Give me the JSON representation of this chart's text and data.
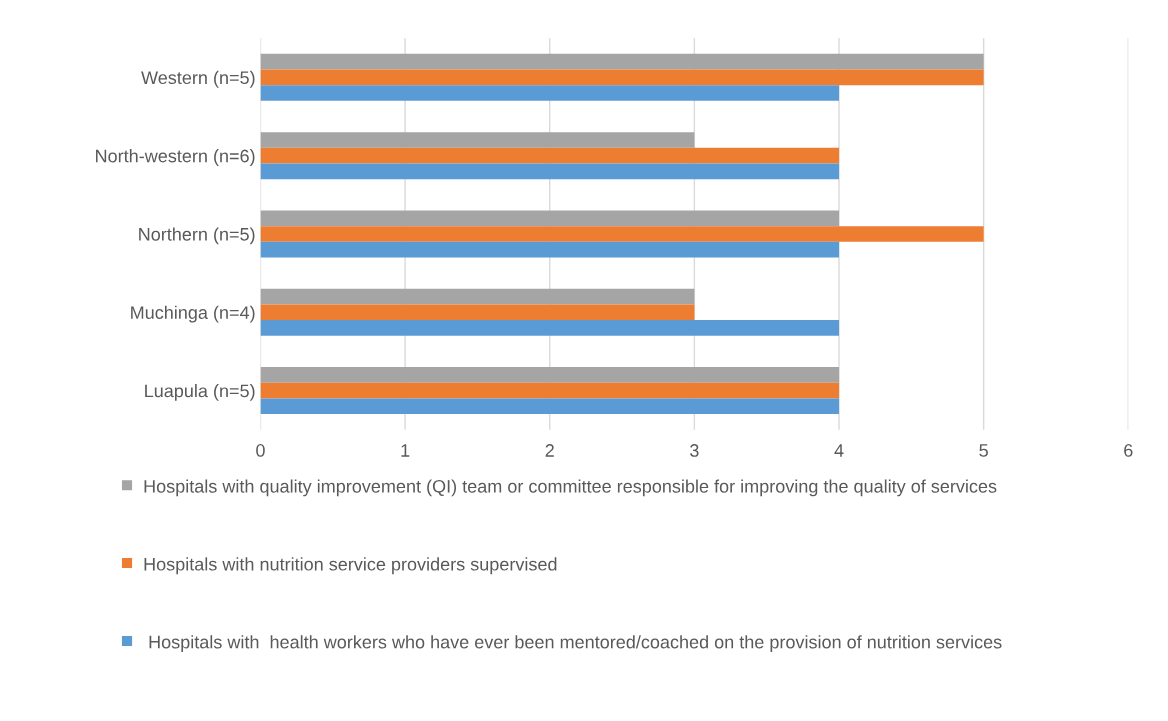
{
  "chart_data": {
    "type": "bar",
    "orientation": "horizontal",
    "categories": [
      "Western (n=5)",
      "North-western (n=6)",
      "Northern (n=5)",
      "Muchinga (n=4)",
      "Luapula (n=5)"
    ],
    "series": [
      {
        "name": "Hospitals with quality improvement (QI) team or committee responsible for improving the quality of services",
        "color": "#a5a5a5",
        "values": [
          5,
          3,
          4,
          3,
          4
        ]
      },
      {
        "name": "Hospitals with nutrition service providers supervised",
        "color": "#ed7d31",
        "values": [
          5,
          4,
          5,
          3,
          4
        ]
      },
      {
        "name": " Hospitals with  health workers who have ever been mentored/coached on the provision of nutrition services",
        "color": "#5b9bd5",
        "values": [
          4,
          4,
          4,
          4,
          4
        ]
      }
    ],
    "xlim": [
      0,
      6
    ],
    "xticks": [
      0,
      1,
      2,
      3,
      4,
      5,
      6
    ],
    "grid": "x",
    "legend": "bottom"
  }
}
